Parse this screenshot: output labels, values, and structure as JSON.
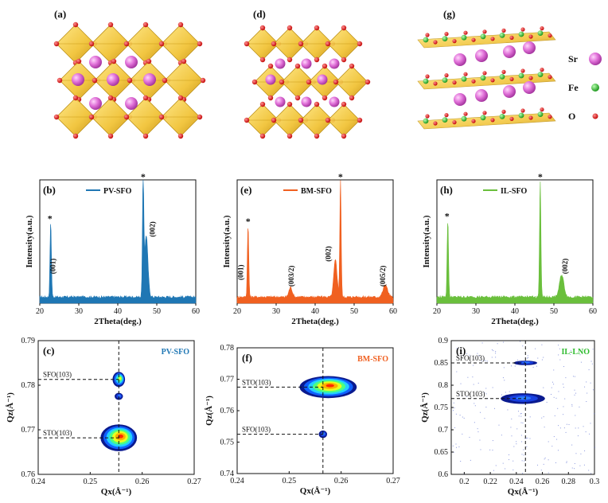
{
  "structure": {
    "panels": [
      {
        "label": "(a)",
        "x": 68,
        "y": 22
      },
      {
        "label": "(d)",
        "x": 318,
        "y": 22
      },
      {
        "label": "(g)",
        "x": 557,
        "y": 22
      }
    ],
    "legend": [
      {
        "name": "Sr",
        "color": "#e070d8"
      },
      {
        "name": "Fe",
        "color": "#2dbb2d"
      },
      {
        "name": "O",
        "color": "#e02020"
      }
    ]
  },
  "chart_data": [
    {
      "type": "line",
      "panel": "(b)",
      "legend": "PV-SFO",
      "color": "#1f77b4",
      "xlabel": "2Theta(deg.)",
      "ylabel": "Intensity(a.u.)",
      "xlim": [
        20,
        60
      ],
      "xticks": [
        20,
        30,
        40,
        50,
        60
      ],
      "peaks": [
        {
          "x": 22.8,
          "h": 0.6,
          "w": 0.25
        },
        {
          "x": 46.5,
          "h": 0.95,
          "w": 0.25
        },
        {
          "x": 47.3,
          "h": 0.5,
          "w": 0.6
        }
      ],
      "baseline": 0.05,
      "annotations": [
        {
          "text": "*",
          "x": 22.6,
          "y": 0.66
        },
        {
          "text": "*",
          "x": 46.5,
          "y": 1.0
        },
        {
          "text": "(001)",
          "x": 24.0,
          "y": 0.3,
          "rot": -90
        },
        {
          "text": "(002)",
          "x": 49.5,
          "y": 0.6,
          "rot": -90
        }
      ]
    },
    {
      "type": "line",
      "panel": "(e)",
      "legend": "BM-SFO",
      "color": "#f06020",
      "xlabel": "2Theta(deg.)",
      "ylabel": "Intensity(a.u.)",
      "xlim": [
        20,
        60
      ],
      "xticks": [
        20,
        30,
        40,
        50,
        60
      ],
      "peaks": [
        {
          "x": 22.8,
          "h": 0.58,
          "w": 0.25
        },
        {
          "x": 33.7,
          "h": 0.08,
          "w": 0.6
        },
        {
          "x": 45.2,
          "h": 0.3,
          "w": 0.6
        },
        {
          "x": 46.5,
          "h": 0.95,
          "w": 0.25
        },
        {
          "x": 58.0,
          "h": 0.1,
          "w": 0.8
        }
      ],
      "baseline": 0.05,
      "annotations": [
        {
          "text": "*",
          "x": 22.8,
          "y": 0.64
        },
        {
          "text": "*",
          "x": 46.5,
          "y": 1.0
        },
        {
          "text": "(001)",
          "x": 21.5,
          "y": 0.25,
          "rot": -90
        },
        {
          "text": "(003/2)",
          "x": 34.5,
          "y": 0.22,
          "rot": -90
        },
        {
          "text": "(002)",
          "x": 44.0,
          "y": 0.4,
          "rot": -90
        },
        {
          "text": "(005/2)",
          "x": 58.0,
          "y": 0.22,
          "rot": -90
        }
      ]
    },
    {
      "type": "line",
      "panel": "(h)",
      "legend": "IL-SFO",
      "color": "#6abf3c",
      "xlabel": "2Theta(deg.)",
      "ylabel": "Intensity(a.u.)",
      "xlim": [
        20,
        60
      ],
      "xticks": [
        20,
        30,
        40,
        50,
        60
      ],
      "peaks": [
        {
          "x": 22.8,
          "h": 0.62,
          "w": 0.25
        },
        {
          "x": 46.5,
          "h": 0.95,
          "w": 0.25
        },
        {
          "x": 52.0,
          "h": 0.18,
          "w": 0.8
        }
      ],
      "baseline": 0.05,
      "annotations": [
        {
          "text": "*",
          "x": 22.6,
          "y": 0.68
        },
        {
          "text": "*",
          "x": 46.5,
          "y": 1.0
        },
        {
          "text": "(002)",
          "x": 53.5,
          "y": 0.3,
          "rot": -90
        }
      ]
    },
    {
      "type": "heatmap",
      "panel": "(c)",
      "title": "PV-SFO",
      "title_color": "#1f77b4",
      "xlabel": "Qx(Å⁻¹)",
      "ylabel": "Qz(Å⁻¹)",
      "xlim": [
        0.24,
        0.27
      ],
      "ylim": [
        0.76,
        0.79
      ],
      "xticks": [
        0.24,
        0.25,
        0.26,
        0.27
      ],
      "yticks": [
        0.76,
        0.77,
        0.78,
        0.79
      ],
      "refx": 0.2555,
      "spots": [
        {
          "x": 0.2555,
          "y": 0.7682,
          "rx": 0.0035,
          "ry": 0.003,
          "peak": "red",
          "label": "STO(103)"
        },
        {
          "x": 0.2555,
          "y": 0.7813,
          "rx": 0.0012,
          "ry": 0.0017,
          "peak": "yellow",
          "label": "SFO(103)"
        },
        {
          "x": 0.2555,
          "y": 0.7775,
          "rx": 0.0008,
          "ry": 0.0008,
          "peak": "blue",
          "label": ""
        }
      ]
    },
    {
      "type": "heatmap",
      "panel": "(f)",
      "title": "BM-SFO",
      "title_color": "#f06020",
      "xlabel": "Qx(Å⁻¹)",
      "ylabel": "Qz(Å⁻¹)",
      "xlim": [
        0.24,
        0.27
      ],
      "ylim": [
        0.74,
        0.78
      ],
      "xticks": [
        0.24,
        0.25,
        0.26,
        0.27
      ],
      "yticks": [
        0.74,
        0.75,
        0.76,
        0.77,
        0.78
      ],
      "refx": 0.2565,
      "spots": [
        {
          "x": 0.2575,
          "y": 0.7675,
          "rx": 0.0055,
          "ry": 0.0035,
          "peak": "red",
          "label": "STO(103)"
        },
        {
          "x": 0.2565,
          "y": 0.7525,
          "rx": 0.0008,
          "ry": 0.0012,
          "peak": "blue",
          "label": "SFO(103)"
        }
      ]
    },
    {
      "type": "heatmap",
      "panel": "(i)",
      "title": "IL-LNO",
      "title_color": "#2dbb2d",
      "xlabel": "Qx(Å⁻¹)",
      "ylabel": "Qz(Å⁻¹)",
      "xlim": [
        0.19,
        0.3
      ],
      "ylim": [
        0.6,
        0.9
      ],
      "xticks": [
        0.2,
        0.22,
        0.24,
        0.26,
        0.28,
        0.3
      ],
      "yticks": [
        0.6,
        0.65,
        0.7,
        0.75,
        0.8,
        0.85,
        0.9
      ],
      "refx": 0.247,
      "spots": [
        {
          "x": 0.245,
          "y": 0.77,
          "rx": 0.017,
          "ry": 0.012,
          "peak": "blue",
          "label": "STO(103)"
        },
        {
          "x": 0.247,
          "y": 0.85,
          "rx": 0.009,
          "ry": 0.005,
          "peak": "blue",
          "label": "SFO(103)"
        }
      ]
    }
  ]
}
